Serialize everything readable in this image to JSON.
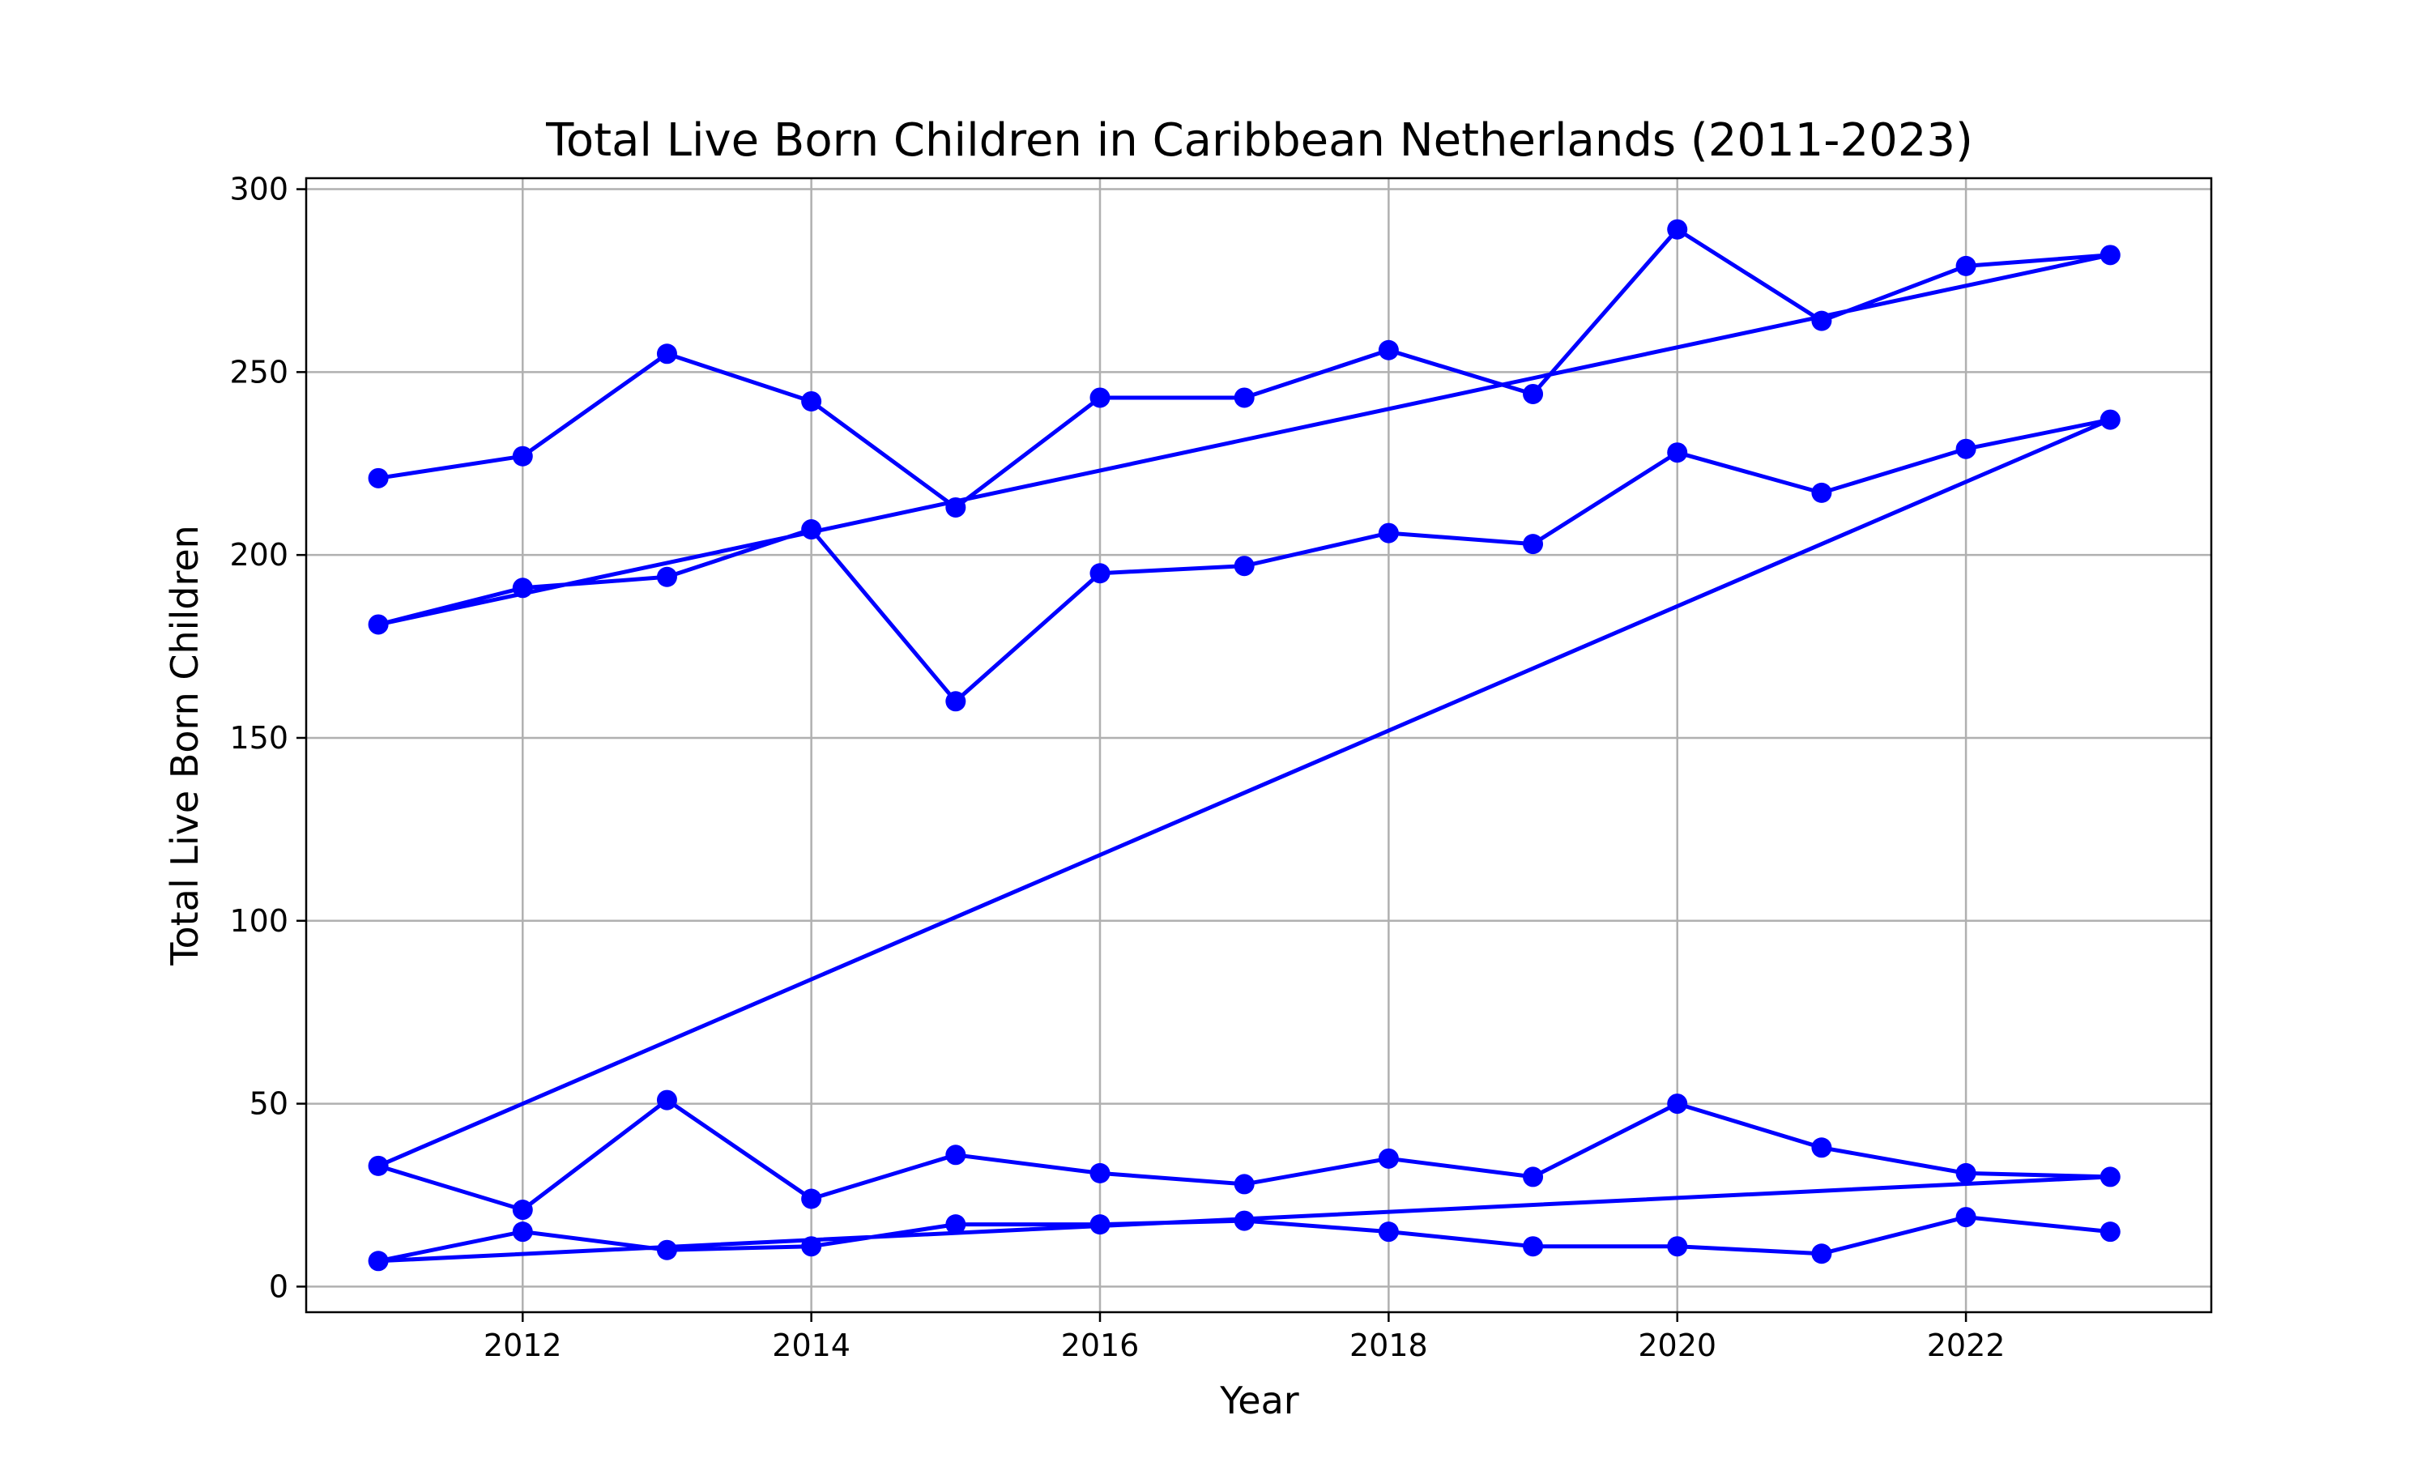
{
  "chart_data": {
    "type": "line",
    "title": "Total Live Born Children in Caribbean Netherlands (2011-2023)",
    "xlabel": "Year",
    "ylabel": "Total Live Born Children",
    "xlim": [
      2010.5,
      2023.7
    ],
    "ylim": [
      -7,
      303
    ],
    "xticks": [
      2012,
      2014,
      2016,
      2018,
      2020,
      2022
    ],
    "yticks": [
      0,
      50,
      100,
      150,
      200,
      250,
      300
    ],
    "grid": true,
    "color": "#0000ff",
    "marker": "circle",
    "x": [
      2011,
      2012,
      2013,
      2014,
      2015,
      2016,
      2017,
      2018,
      2019,
      2020,
      2021,
      2022,
      2023
    ],
    "series": [
      {
        "values": [
          221,
          227,
          255,
          242,
          213,
          243,
          243,
          256,
          244,
          289,
          264,
          279,
          282
        ]
      },
      {
        "values": [
          181,
          191,
          194,
          207,
          160,
          195,
          197,
          206,
          203,
          228,
          217,
          229,
          237
        ]
      },
      {
        "values": [
          33,
          21,
          51,
          24,
          36,
          31,
          28,
          35,
          30,
          50,
          38,
          31,
          30
        ]
      },
      {
        "values": [
          7,
          15,
          10,
          11,
          17,
          17,
          18,
          15,
          11,
          11,
          9,
          19,
          15
        ]
      }
    ]
  }
}
